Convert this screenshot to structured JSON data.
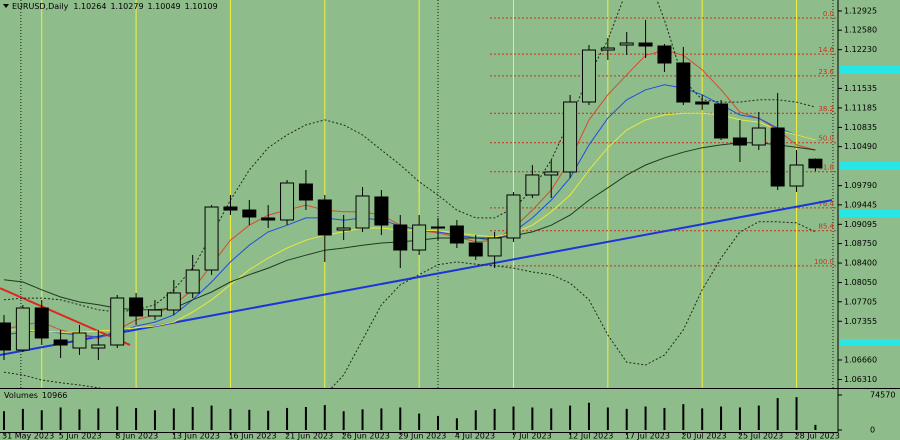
{
  "chart_data": {
    "type": "candlestick",
    "title": "EURUSD,Daily",
    "categories": [
      "31 May 2023",
      null,
      null,
      "5 Jun 2023",
      null,
      null,
      "8 Jun 2023",
      null,
      null,
      "13 Jun 2023",
      null,
      null,
      "16 Jun 2023",
      null,
      null,
      "21 Jun 2023",
      null,
      null,
      "26 Jun 2023",
      null,
      null,
      "29 Jun 2023",
      null,
      null,
      "4 Jul 2023",
      null,
      null,
      "7 Jul 2023",
      null,
      null,
      "12 Jul 2023",
      null,
      null,
      "17 Jul 2023",
      null,
      null,
      "20 Jul 2023",
      null,
      null,
      "25 Jul 2023",
      null,
      null,
      "28 Jul 2023",
      null
    ],
    "open": [
      1.07324,
      1.06839,
      1.07593,
      1.07019,
      1.06875,
      1.06875,
      1.06929,
      1.07773,
      1.0745,
      1.07557,
      1.07863,
      1.08275,
      1.09406,
      1.09352,
      1.09209,
      1.09173,
      1.09819,
      1.09532,
      1.08993,
      1.09029,
      1.09586,
      1.09083,
      1.08634,
      1.09029,
      1.09065,
      1.0876,
      1.08527,
      1.0885,
      1.09622,
      1.09981,
      1.10035,
      1.11291,
      1.12224,
      1.12314,
      1.1235,
      1.12296,
      1.11991,
      1.11291,
      1.11255,
      1.10645,
      1.10519,
      1.10824,
      1.09783,
      1.10264
    ],
    "high": [
      1.07468,
      1.07647,
      1.07737,
      1.07198,
      1.07288,
      1.07198,
      1.07827,
      1.07863,
      1.07737,
      1.08096,
      1.08545,
      1.09442,
      1.09622,
      1.09532,
      1.09442,
      1.09891,
      1.1007,
      1.09622,
      1.09263,
      1.09765,
      1.09711,
      1.09263,
      1.09263,
      1.09209,
      1.09173,
      1.08904,
      1.08958,
      1.09676,
      1.1016,
      1.1025,
      1.11417,
      1.12314,
      1.1244,
      1.12548,
      1.12763,
      1.12332,
      1.12278,
      1.11417,
      1.11327,
      1.10968,
      1.11112,
      1.11453,
      1.10429,
      1.10279
    ],
    "low": [
      1.0666,
      1.06804,
      1.06929,
      1.06696,
      1.0675,
      1.0666,
      1.06875,
      1.07288,
      1.07378,
      1.07468,
      1.07773,
      1.08186,
      1.09263,
      1.09083,
      1.09029,
      1.09083,
      1.09352,
      1.08419,
      1.08814,
      1.08958,
      1.08904,
      1.08311,
      1.08545,
      1.08814,
      1.0867,
      1.08455,
      1.08311,
      1.08778,
      1.09568,
      1.09568,
      1.09927,
      1.11237,
      1.12045,
      1.12135,
      1.12081,
      1.1183,
      1.11237,
      1.11147,
      1.10609,
      1.10214,
      1.10429,
      1.09711,
      1.09676,
      1.10049
    ],
    "close": [
      1.06839,
      1.07593,
      1.07055,
      1.06929,
      1.07145,
      1.06929,
      1.07773,
      1.0745,
      1.07557,
      1.07863,
      1.08275,
      1.09406,
      1.09352,
      1.09227,
      1.09173,
      1.09837,
      1.09532,
      1.08904,
      1.09029,
      1.09604,
      1.09083,
      1.08634,
      1.09083,
      1.09047,
      1.0876,
      1.08527,
      1.0885,
      1.09622,
      1.09981,
      1.10035,
      1.11291,
      1.12224,
      1.1226,
      1.1235,
      1.12296,
      1.11991,
      1.11291,
      1.11255,
      1.10645,
      1.10519,
      1.10824,
      1.09783,
      1.1016,
      1.10109
    ],
    "up_color": "#8fbc8b",
    "down_color": "#000000",
    "ylim": [
      1.06157,
      1.13122
    ],
    "yticks": [
      1.12925,
      {
        "value": 1.1258,
        "label": "1.12580"
      },
      {
        "value": 1.1223,
        "label": "1.12230"
      },
      1.11535,
      1.11185,
      1.10835,
      {
        "value": 1.1049,
        "label": "1.10490"
      },
      {
        "value": 1.0979,
        "label": "1.09790"
      },
      1.09445,
      1.09095,
      {
        "value": 1.0875,
        "label": "1.08750"
      },
      {
        "value": 1.084,
        "label": "1.08400"
      },
      {
        "value": 1.0805,
        "label": "1.08050"
      },
      1.07705,
      1.07355,
      {
        "value": 1.0666,
        "label": "1.06660"
      },
      {
        "value": 1.0631,
        "label": "1.06310"
      }
    ],
    "grid": false,
    "indicators": [
      {
        "color": "#d94a2c",
        "style": "solid",
        "values": [
          1.072,
          1.0729,
          1.0734,
          1.072,
          1.0711,
          1.0705,
          1.072,
          1.0738,
          1.0747,
          1.0765,
          1.0792,
          1.0837,
          1.0881,
          1.0908,
          1.0926,
          1.0935,
          1.0944,
          1.0935,
          1.0932,
          1.0932,
          1.0926,
          1.0908,
          1.0899,
          1.0894,
          1.0887,
          1.0878,
          1.0881,
          1.0903,
          1.0935,
          1.0971,
          1.1025,
          1.1097,
          1.1142,
          1.1178,
          1.1213,
          1.1222,
          1.1213,
          1.1187,
          1.1151,
          1.1111,
          1.11,
          1.1079,
          1.1052,
          1.1043
        ]
      },
      {
        "color": "#1f4fe0",
        "style": "solid",
        "values": [
          1.0711,
          1.0716,
          1.072,
          1.0714,
          1.0711,
          1.0707,
          1.0714,
          1.0727,
          1.0734,
          1.0747,
          1.0774,
          1.0806,
          1.0842,
          1.0872,
          1.0896,
          1.0908,
          1.0921,
          1.0921,
          1.0917,
          1.0921,
          1.0917,
          1.0907,
          1.0899,
          1.0896,
          1.089,
          1.0885,
          1.0881,
          1.0896,
          1.0921,
          1.0953,
          1.0993,
          1.1052,
          1.11,
          1.1133,
          1.1151,
          1.116,
          1.1154,
          1.1142,
          1.1124,
          1.1106,
          1.11,
          1.1082,
          1.107,
          1.1061
        ]
      },
      {
        "color": "#e8e83a",
        "style": "solid",
        "values": [
          1.072,
          1.072,
          1.0718,
          1.0716,
          1.0716,
          1.0718,
          1.072,
          1.0724,
          1.0727,
          1.0734,
          1.0752,
          1.0774,
          1.0801,
          1.0828,
          1.0849,
          1.0867,
          1.0881,
          1.089,
          1.0896,
          1.0903,
          1.0903,
          1.0899,
          1.0899,
          1.0898,
          1.0894,
          1.089,
          1.0887,
          1.0894,
          1.0908,
          1.0932,
          1.0962,
          1.1007,
          1.1047,
          1.1079,
          1.1097,
          1.1106,
          1.1109,
          1.1109,
          1.1106,
          1.1097,
          1.1093,
          1.1079,
          1.107,
          1.1061
        ]
      },
      {
        "color": "#1e3a1e",
        "style": "solid",
        "values": [
          1.081,
          1.0806,
          1.0792,
          1.0779,
          1.077,
          1.0765,
          1.0759,
          1.0756,
          1.0756,
          1.0759,
          1.0774,
          1.0788,
          1.0806,
          1.0819,
          1.0831,
          1.0845,
          1.0854,
          1.0863,
          1.0867,
          1.0872,
          1.0876,
          1.0878,
          1.0881,
          1.0885,
          1.0885,
          1.0885,
          1.0885,
          1.0889,
          1.0896,
          1.0908,
          1.0926,
          1.0953,
          1.0975,
          1.0998,
          1.1016,
          1.1029,
          1.1039,
          1.1047,
          1.1052,
          1.1056,
          1.1056,
          1.1052,
          1.1048,
          1.1043
        ]
      },
      {
        "color": "#1e2a1e",
        "style": "dotted",
        "values": [
          1.0774,
          1.0777,
          1.0777,
          1.0774,
          1.0765,
          1.0756,
          1.0752,
          1.0756,
          1.0765,
          1.0792,
          1.0831,
          1.089,
          1.0953,
          1.1007,
          1.1047,
          1.107,
          1.1088,
          1.1097,
          1.1088,
          1.107,
          1.1043,
          1.1016,
          1.0986,
          1.0962,
          1.0935,
          1.0921,
          1.0921,
          1.0939,
          1.0971,
          1.1025,
          1.1097,
          1.1178,
          1.124,
          1.133,
          1.1366,
          1.1276,
          1.1169,
          1.1133,
          1.1129,
          1.1129,
          1.1133,
          1.1133,
          1.1129,
          1.112
        ]
      },
      {
        "color": "#1e2a1e",
        "style": "dotted",
        "values": [
          1.0644,
          1.0639,
          1.063,
          1.0625,
          1.0621,
          1.0616,
          1.0609,
          1.0598,
          1.0585,
          1.0576,
          1.0558,
          1.054,
          1.0522,
          1.0514,
          1.0522,
          1.054,
          1.0567,
          1.0603,
          1.0639,
          1.0702,
          1.0765,
          1.0801,
          1.0819,
          1.0837,
          1.0842,
          1.0838,
          1.0835,
          1.0831,
          1.0824,
          1.0819,
          1.0804,
          1.0774,
          1.0711,
          1.0662,
          1.0657,
          1.0675,
          1.072,
          1.0792,
          1.0849,
          1.0896,
          1.0914,
          1.0914,
          1.0912,
          1.0896
        ]
      }
    ],
    "trendlines": [
      {
        "color": "#1c35d8",
        "start": 1.0675,
        "end": 1.0953
      },
      {
        "color": "#e0261a",
        "start": 1.0795,
        "end": 1.0693
      }
    ],
    "fibo_color": "#c8321e",
    "fibo": [
      {
        "value": 1.128,
        "label": "0.0"
      },
      {
        "value": 1.1215,
        "label": "14.6"
      },
      {
        "value": 1.1176,
        "label": "23.6"
      },
      {
        "value": 1.1109,
        "label": "38.2"
      },
      {
        "value": 1.1056,
        "label": "50.0"
      },
      {
        "value": 1.1004,
        "label": "61.8"
      },
      {
        "value": 1.0939,
        "label": "76.4"
      },
      {
        "value": 1.0898,
        "label": "85.4"
      },
      {
        "value": 1.0835,
        "label": "100.0"
      }
    ],
    "volume": {
      "title": "Volumes",
      "color": "#000000",
      "ylim": [
        0,
        74570
      ],
      "yticks": [
        74570,
        0
      ],
      "values": [
        40000,
        45000,
        42000,
        48000,
        44000,
        46000,
        50000,
        47000,
        42000,
        46000,
        49000,
        52000,
        45000,
        43000,
        41000,
        47000,
        49000,
        53000,
        40000,
        44000,
        46000,
        48000,
        35000,
        30000,
        25000,
        42000,
        45000,
        50000,
        48000,
        46000,
        52000,
        58000,
        48000,
        45000,
        50000,
        47000,
        55000,
        46000,
        50000,
        48000,
        52000,
        68000,
        70000,
        10966
      ]
    }
  }
}
